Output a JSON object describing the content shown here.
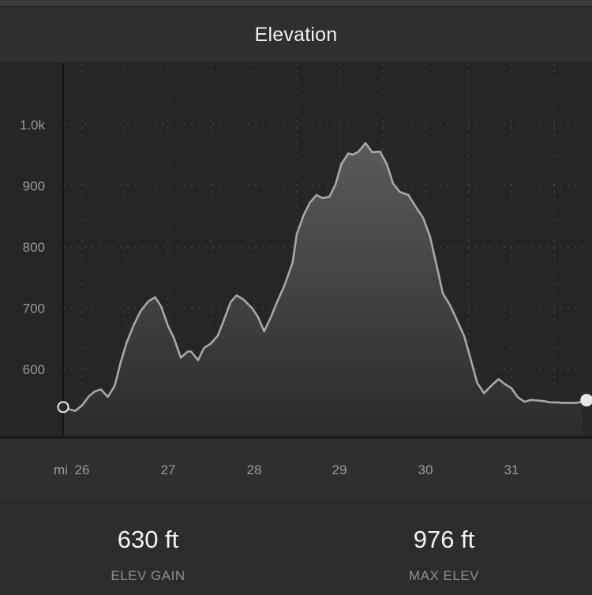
{
  "header": {
    "title": "Elevation"
  },
  "chart_data": {
    "type": "area",
    "xlabel": "mi",
    "ylabel": "",
    "xlim": [
      25.77,
      31.88
    ],
    "ylim": [
      495,
      1110
    ],
    "yticks": [
      {
        "value": 600,
        "label": "600"
      },
      {
        "value": 700,
        "label": "700"
      },
      {
        "value": 800,
        "label": "800"
      },
      {
        "value": 900,
        "label": "900"
      },
      {
        "value": 1000,
        "label": "1.0k"
      }
    ],
    "xticks": [
      {
        "value": 26,
        "label": "26"
      },
      {
        "value": 27,
        "label": "27"
      },
      {
        "value": 28,
        "label": "28"
      },
      {
        "value": 29,
        "label": "29"
      },
      {
        "value": 30,
        "label": "30"
      },
      {
        "value": 31,
        "label": "31"
      }
    ],
    "grid": true,
    "x": [
      25.78,
      25.92,
      26.0,
      26.08,
      26.15,
      26.22,
      26.3,
      26.38,
      26.45,
      26.52,
      26.6,
      26.68,
      26.77,
      26.85,
      26.92,
      27.0,
      27.07,
      27.15,
      27.23,
      27.27,
      27.35,
      27.42,
      27.5,
      27.58,
      27.65,
      27.73,
      27.8,
      27.88,
      27.98,
      28.05,
      28.12,
      28.2,
      28.27,
      28.35,
      28.45,
      28.5,
      28.58,
      28.65,
      28.73,
      28.8,
      28.88,
      28.95,
      29.02,
      29.1,
      29.15,
      29.22,
      29.3,
      29.38,
      29.47,
      29.55,
      29.62,
      29.7,
      29.8,
      29.88,
      29.97,
      30.05,
      30.12,
      30.2,
      30.28,
      30.35,
      30.45,
      30.52,
      30.6,
      30.68,
      30.77,
      30.85,
      30.92,
      31.0,
      31.07,
      31.15,
      31.23,
      31.3,
      31.38,
      31.45,
      31.53,
      31.6,
      31.67,
      31.75,
      31.82
    ],
    "values": [
      537,
      532,
      541,
      556,
      564,
      567,
      555,
      573,
      612,
      644,
      672,
      695,
      711,
      718,
      703,
      671,
      651,
      619,
      629,
      629,
      615,
      635,
      642,
      655,
      680,
      710,
      721,
      714,
      700,
      685,
      662,
      686,
      710,
      735,
      774,
      821,
      852,
      872,
      885,
      880,
      882,
      902,
      936,
      953,
      951,
      956,
      970,
      955,
      956,
      935,
      904,
      890,
      885,
      867,
      848,
      818,
      775,
      724,
      706,
      685,
      654,
      619,
      578,
      561,
      574,
      584,
      576,
      569,
      555,
      547,
      550,
      549,
      548,
      546,
      546,
      545,
      545,
      545,
      547
    ]
  },
  "stats": [
    {
      "value": "630 ft",
      "label": "ELEV GAIN"
    },
    {
      "value": "976 ft",
      "label": "MAX ELEV"
    }
  ],
  "colors": {
    "line": "#a8a8a8",
    "fill_top": "#5a5a5a",
    "fill_bottom": "#2b2b2b",
    "grid": "#4a4a4a",
    "background": "#262626"
  }
}
